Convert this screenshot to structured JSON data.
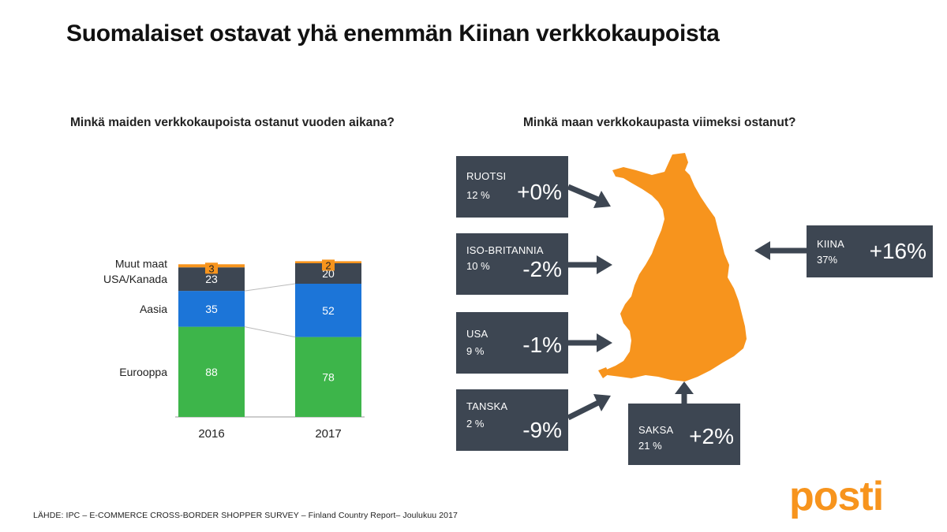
{
  "title": "Suomalaiset ostavat yhä enemmän Kiinan verkkokaupoista",
  "left_subtitle": "Minkä maiden verkkokaupoista ostanut vuoden aikana?",
  "right_subtitle": "Minkä maan verkkokaupasta viimeksi ostanut?",
  "chart_data": {
    "type": "bar",
    "stacked": true,
    "categories": [
      "2016",
      "2017"
    ],
    "series": [
      {
        "name": "Eurooppa",
        "values": [
          88,
          78
        ],
        "color": "#3db54a"
      },
      {
        "name": "Aasia",
        "values": [
          35,
          52
        ],
        "color": "#1c75d8"
      },
      {
        "name": "USA/Kanada",
        "values": [
          23,
          20
        ],
        "color": "#3d4652"
      },
      {
        "name": "Muut maat",
        "values": [
          3,
          2
        ],
        "color": "#f7941d"
      }
    ]
  },
  "countries": [
    {
      "name": "RUOTSI",
      "share": "12 %",
      "change": "+0%"
    },
    {
      "name": "ISO-BRITANNIA",
      "share": "10 %",
      "change": "-2%"
    },
    {
      "name": "USA",
      "share": "9 %",
      "change": "-1%"
    },
    {
      "name": "TANSKA",
      "share": "2 %",
      "change": "-9%"
    },
    {
      "name": "SAKSA",
      "share": "21 %",
      "change": "+2%"
    },
    {
      "name": "KIINA",
      "share": "37%",
      "change": "+16%"
    }
  ],
  "colors": {
    "box": "#3d4652",
    "map": "#f7941d",
    "brand": "#f7941d"
  },
  "source": "LÄHDE: IPC – E-COMMERCE CROSS-BORDER SHOPPER SURVEY – Finland Country Report– Joulukuu 2017",
  "logo": "posti"
}
